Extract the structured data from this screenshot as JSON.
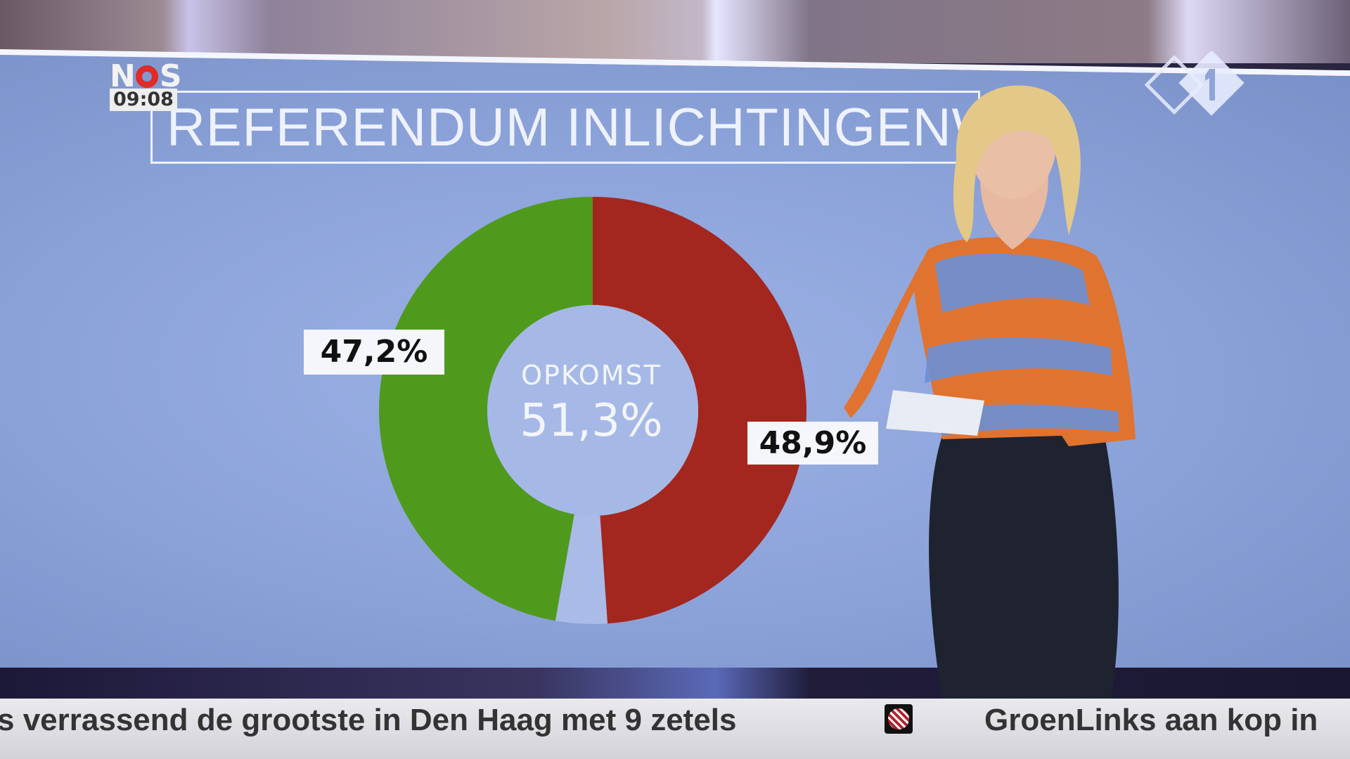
{
  "broadcast": {
    "channel_logo": "NOS",
    "time": "09:08",
    "network_logo": "NPO 1"
  },
  "graphic": {
    "title": "REFERENDUM INLICHTINGENWET",
    "center_label": "OPKOMST",
    "center_value": "51,3%"
  },
  "chart_data": {
    "type": "pie",
    "title": "REFERENDUM INLICHTINGENWET",
    "donut": true,
    "slices": [
      {
        "value": 48.9,
        "label": "48,9%",
        "color": "#a3271f"
      },
      {
        "value": 47.2,
        "label": "47,2%",
        "color": "#4f9a1d"
      }
    ],
    "remainder_color": "#a9bbe6",
    "center_annotation": {
      "label": "OPKOMST",
      "value": "51,3%"
    }
  },
  "ticker": {
    "items": [
      "s verrassend de grootste in Den Haag met 9 zetels",
      "GroenLinks aan kop in"
    ],
    "separator_icon": "nos-ticker-logo-icon"
  },
  "colors": {
    "screen_blue": "#8ba2d9",
    "nos_red": "#e02b26"
  }
}
